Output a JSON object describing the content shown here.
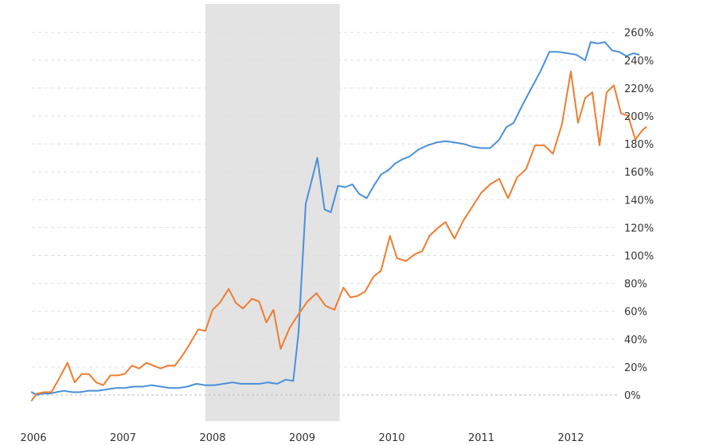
{
  "chart_data": {
    "type": "line",
    "title": "",
    "xlabel": "",
    "ylabel": "",
    "x_range": [
      2005.96,
      2012.5
    ],
    "y_range": [
      -20,
      270
    ],
    "y_ticks": [
      0,
      20,
      40,
      60,
      80,
      100,
      120,
      140,
      160,
      180,
      200,
      220,
      240,
      260
    ],
    "y_tick_labels": [
      "0%",
      "20%",
      "40%",
      "60%",
      "80%",
      "100%",
      "120%",
      "140%",
      "160%",
      "180%",
      "200%",
      "220%",
      "240%",
      "260%"
    ],
    "x_ticks": [
      2006,
      2007,
      2008,
      2009,
      2010,
      2011,
      2012
    ],
    "x_tick_labels": [
      "2006",
      "2007",
      "2008",
      "2009",
      "2010",
      "2011",
      "2012"
    ],
    "grid": true,
    "legend": "none",
    "shaded_region": {
      "x_start": 2007.92,
      "x_end": 2009.42,
      "color": "#e3e3e3"
    },
    "series": [
      {
        "color": "#4a90d9",
        "points": [
          [
            2005.98,
            2
          ],
          [
            2006.04,
            0
          ],
          [
            2006.1,
            1
          ],
          [
            2006.18,
            1
          ],
          [
            2006.26,
            2
          ],
          [
            2006.34,
            3
          ],
          [
            2006.43,
            2
          ],
          [
            2006.52,
            2
          ],
          [
            2006.62,
            3
          ],
          [
            2006.72,
            3
          ],
          [
            2006.82,
            4
          ],
          [
            2006.92,
            5
          ],
          [
            2007.02,
            5
          ],
          [
            2007.12,
            6
          ],
          [
            2007.22,
            6
          ],
          [
            2007.32,
            7
          ],
          [
            2007.42,
            6
          ],
          [
            2007.52,
            5
          ],
          [
            2007.62,
            5
          ],
          [
            2007.72,
            6
          ],
          [
            2007.82,
            8
          ],
          [
            2007.92,
            7
          ],
          [
            2008.02,
            7
          ],
          [
            2008.12,
            8
          ],
          [
            2008.22,
            9
          ],
          [
            2008.32,
            8
          ],
          [
            2008.42,
            8
          ],
          [
            2008.52,
            8
          ],
          [
            2008.62,
            9
          ],
          [
            2008.72,
            8
          ],
          [
            2008.82,
            11
          ],
          [
            2008.9,
            10
          ],
          [
            2008.96,
            45
          ],
          [
            2009.04,
            137
          ],
          [
            2009.1,
            152
          ],
          [
            2009.17,
            170
          ],
          [
            2009.25,
            133
          ],
          [
            2009.32,
            131
          ],
          [
            2009.4,
            150
          ],
          [
            2009.48,
            149
          ],
          [
            2009.56,
            151
          ],
          [
            2009.64,
            144
          ],
          [
            2009.72,
            141
          ],
          [
            2009.8,
            150
          ],
          [
            2009.88,
            158
          ],
          [
            2009.96,
            161
          ],
          [
            2010.04,
            166
          ],
          [
            2010.12,
            169
          ],
          [
            2010.2,
            171
          ],
          [
            2010.3,
            176
          ],
          [
            2010.4,
            179
          ],
          [
            2010.5,
            181
          ],
          [
            2010.6,
            182
          ],
          [
            2010.7,
            181
          ],
          [
            2010.8,
            180
          ],
          [
            2010.9,
            178
          ],
          [
            2011.0,
            177
          ],
          [
            2011.1,
            177
          ],
          [
            2011.2,
            183
          ],
          [
            2011.28,
            192
          ],
          [
            2011.36,
            195
          ],
          [
            2011.46,
            208
          ],
          [
            2011.56,
            220
          ],
          [
            2011.66,
            232
          ],
          [
            2011.76,
            246
          ],
          [
            2011.86,
            246
          ],
          [
            2011.96,
            245
          ],
          [
            2012.06,
            244
          ],
          [
            2012.16,
            240
          ],
          [
            2012.22,
            253
          ],
          [
            2012.3,
            252
          ],
          [
            2012.38,
            253
          ],
          [
            2012.46,
            247
          ],
          [
            2012.54,
            246
          ],
          [
            2012.62,
            243
          ],
          [
            2012.7,
            245
          ],
          [
            2012.76,
            244
          ]
        ]
      },
      {
        "color": "#ed7d31",
        "points": [
          [
            2005.98,
            -4
          ],
          [
            2006.04,
            1
          ],
          [
            2006.12,
            2
          ],
          [
            2006.2,
            2
          ],
          [
            2006.28,
            11
          ],
          [
            2006.38,
            23
          ],
          [
            2006.46,
            9
          ],
          [
            2006.54,
            15
          ],
          [
            2006.62,
            15
          ],
          [
            2006.7,
            9
          ],
          [
            2006.78,
            7
          ],
          [
            2006.86,
            14
          ],
          [
            2006.94,
            14
          ],
          [
            2007.02,
            15
          ],
          [
            2007.1,
            21
          ],
          [
            2007.18,
            19
          ],
          [
            2007.26,
            23
          ],
          [
            2007.34,
            21
          ],
          [
            2007.42,
            19
          ],
          [
            2007.5,
            21
          ],
          [
            2007.58,
            21
          ],
          [
            2007.66,
            28
          ],
          [
            2007.74,
            36
          ],
          [
            2007.84,
            47
          ],
          [
            2007.92,
            46
          ],
          [
            2008.0,
            61
          ],
          [
            2008.08,
            66
          ],
          [
            2008.18,
            76
          ],
          [
            2008.26,
            66
          ],
          [
            2008.34,
            62
          ],
          [
            2008.44,
            69
          ],
          [
            2008.52,
            67
          ],
          [
            2008.6,
            52
          ],
          [
            2008.68,
            61
          ],
          [
            2008.76,
            33
          ],
          [
            2008.86,
            48
          ],
          [
            2008.96,
            58
          ],
          [
            2009.06,
            67
          ],
          [
            2009.16,
            73
          ],
          [
            2009.26,
            64
          ],
          [
            2009.36,
            61
          ],
          [
            2009.46,
            77
          ],
          [
            2009.54,
            70
          ],
          [
            2009.62,
            71
          ],
          [
            2009.7,
            74
          ],
          [
            2009.8,
            85
          ],
          [
            2009.88,
            89
          ],
          [
            2009.98,
            114
          ],
          [
            2010.06,
            98
          ],
          [
            2010.16,
            96
          ],
          [
            2010.26,
            101
          ],
          [
            2010.34,
            103
          ],
          [
            2010.42,
            114
          ],
          [
            2010.52,
            120
          ],
          [
            2010.6,
            124
          ],
          [
            2010.7,
            112
          ],
          [
            2010.8,
            125
          ],
          [
            2010.9,
            135
          ],
          [
            2011.0,
            145
          ],
          [
            2011.1,
            151
          ],
          [
            2011.2,
            155
          ],
          [
            2011.3,
            141
          ],
          [
            2011.4,
            156
          ],
          [
            2011.5,
            162
          ],
          [
            2011.6,
            179
          ],
          [
            2011.7,
            179
          ],
          [
            2011.8,
            173
          ],
          [
            2011.9,
            194
          ],
          [
            2012.0,
            232
          ],
          [
            2012.08,
            195
          ],
          [
            2012.16,
            213
          ],
          [
            2012.24,
            217
          ],
          [
            2012.32,
            179
          ],
          [
            2012.4,
            217
          ],
          [
            2012.48,
            222
          ],
          [
            2012.56,
            202
          ],
          [
            2012.64,
            200
          ],
          [
            2012.72,
            183
          ],
          [
            2012.8,
            190
          ],
          [
            2012.84,
            192
          ]
        ]
      }
    ]
  }
}
